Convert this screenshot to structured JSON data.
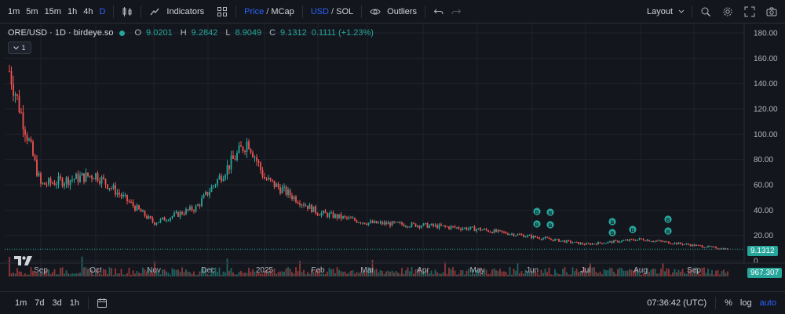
{
  "toolbar": {
    "intervals": [
      "1m",
      "5m",
      "15m",
      "1h",
      "4h",
      "D"
    ],
    "active_interval": "D",
    "indicators_label": "Indicators",
    "price_label": "Price",
    "mcap_label": "MCap",
    "slash": "/",
    "usd_label": "USD",
    "sol_label": "SOL",
    "outliers_label": "Outliers",
    "layout_label": "Layout"
  },
  "legend": {
    "symbol": "ORE/USD · 1D · birdeye.so",
    "o_label": "O",
    "o_value": "9.0201",
    "h_label": "H",
    "h_value": "9.2842",
    "l_label": "L",
    "l_value": "8.9049",
    "c_label": "C",
    "c_value": "9.1312",
    "change": "0.1111 (+1.23%)",
    "collapse_count": "1"
  },
  "price_axis": {
    "ticks": [
      "180.00",
      "160.00",
      "140.00",
      "120.00",
      "100.00",
      "80.00",
      "60.00",
      "40.00",
      "20.00",
      "0"
    ],
    "last_price": "9.1312",
    "volume_value": "967.307"
  },
  "time_axis": {
    "ticks": [
      "Sep",
      "Oct",
      "Nov",
      "Dec",
      "2025",
      "Feb",
      "Mar",
      "Apr",
      "May",
      "Jun",
      "Jul",
      "Aug",
      "Sep"
    ]
  },
  "markers": {
    "label": "B"
  },
  "bottombar": {
    "ranges": [
      "1m",
      "7d",
      "3d",
      "1h"
    ],
    "clock": "07:36:42 (UTC)",
    "percent_label": "%",
    "log_label": "log",
    "auto_label": "auto"
  },
  "colors": {
    "up": "#26a69a",
    "down": "#ef5350",
    "background": "#14161d",
    "accent": "#2962ff"
  },
  "chart_data": {
    "type": "candlestick",
    "series": [
      {
        "name": "ORE/USD · 1D · birdeye.so",
        "x": [
          "Aug 2024",
          "Sep 2024",
          "Oct 2024",
          "Nov 2024",
          "Dec 2024",
          "Dec 2024",
          "Jan 2025",
          "Feb 2025",
          "Mar 2025",
          "Apr 2025",
          "May 2025",
          "Jun 2025",
          "Jul 2025",
          "Aug 2025",
          "Sep 2025"
        ],
        "close": [
          150,
          60,
          68,
          30,
          42,
          95,
          65,
          38,
          30,
          28,
          25,
          19,
          13,
          17,
          9.1312
        ]
      }
    ],
    "ylim": [
      0,
      180
    ],
    "yticks": [
      0,
      20,
      40,
      60,
      80,
      100,
      120,
      140,
      160,
      180
    ],
    "last_ohlc": {
      "open": 9.0201,
      "high": 9.2842,
      "low": 8.9049,
      "close": 9.1312,
      "change": 0.1111,
      "change_pct": 1.23
    },
    "last_volume": 967.307,
    "grid": true
  }
}
